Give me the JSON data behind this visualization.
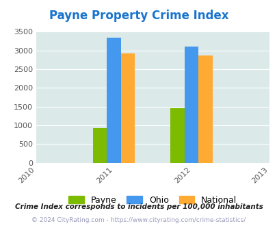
{
  "title": "Payne Property Crime Index",
  "title_color": "#1874cd",
  "bar_groups": {
    "2011": {
      "Payne": 930,
      "Ohio": 3340,
      "National": 2920
    },
    "2012": {
      "Payne": 1450,
      "Ohio": 3100,
      "National": 2860
    }
  },
  "bar_colors": {
    "Payne": "#7cbb00",
    "Ohio": "#4499ee",
    "National": "#ffaa33"
  },
  "ylim": [
    0,
    3500
  ],
  "yticks": [
    0,
    500,
    1000,
    1500,
    2000,
    2500,
    3000,
    3500
  ],
  "bg_color": "#dce9e9",
  "legend_labels": [
    "Payne",
    "Ohio",
    "National"
  ],
  "footnote1": "Crime Index corresponds to incidents per 100,000 inhabitants",
  "footnote2": "© 2024 CityRating.com - https://www.cityrating.com/crime-statistics/",
  "bar_width": 0.18,
  "xtick_labels": [
    "2010",
    "2011",
    "2012",
    "2013"
  ]
}
